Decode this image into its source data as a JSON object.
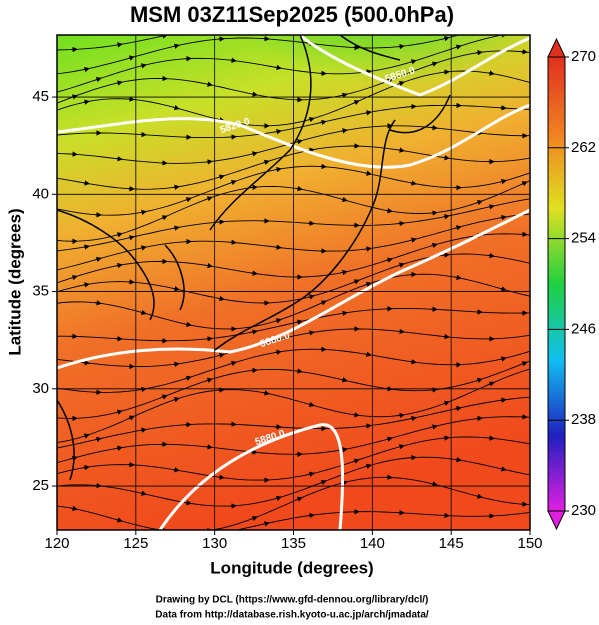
{
  "chart_data": {
    "type": "map",
    "title": "MSM 03Z11Sep2025 (500.0hPa)",
    "xlabel": "Longitude (degrees)",
    "ylabel": "Latitude  (degrees)",
    "xlim": [
      120,
      150
    ],
    "ylim": [
      22.74,
      48.19
    ],
    "xticks": [
      120,
      125,
      130,
      135,
      140,
      145,
      150
    ],
    "yticks": [
      25,
      30,
      35,
      40,
      45
    ],
    "grid": true,
    "colorbar": {
      "lim": [
        230,
        270
      ],
      "ticks": [
        230,
        238,
        246,
        254,
        262,
        270
      ],
      "colors": [
        "#e020e0",
        "#2020c0",
        "#10c0f0",
        "#20d040",
        "#e0e020",
        "#f08020",
        "#e03020"
      ]
    },
    "contour_labels": [
      "5850.0",
      "5820.0",
      "5880.0",
      "5880.0"
    ],
    "credits": [
      "Drawing by DCL (https://www.gfd-dennou.org/library/dcl/)",
      "Data from http://database.rish.kyoto-u.ac.jp/arch/jmadata/"
    ]
  }
}
